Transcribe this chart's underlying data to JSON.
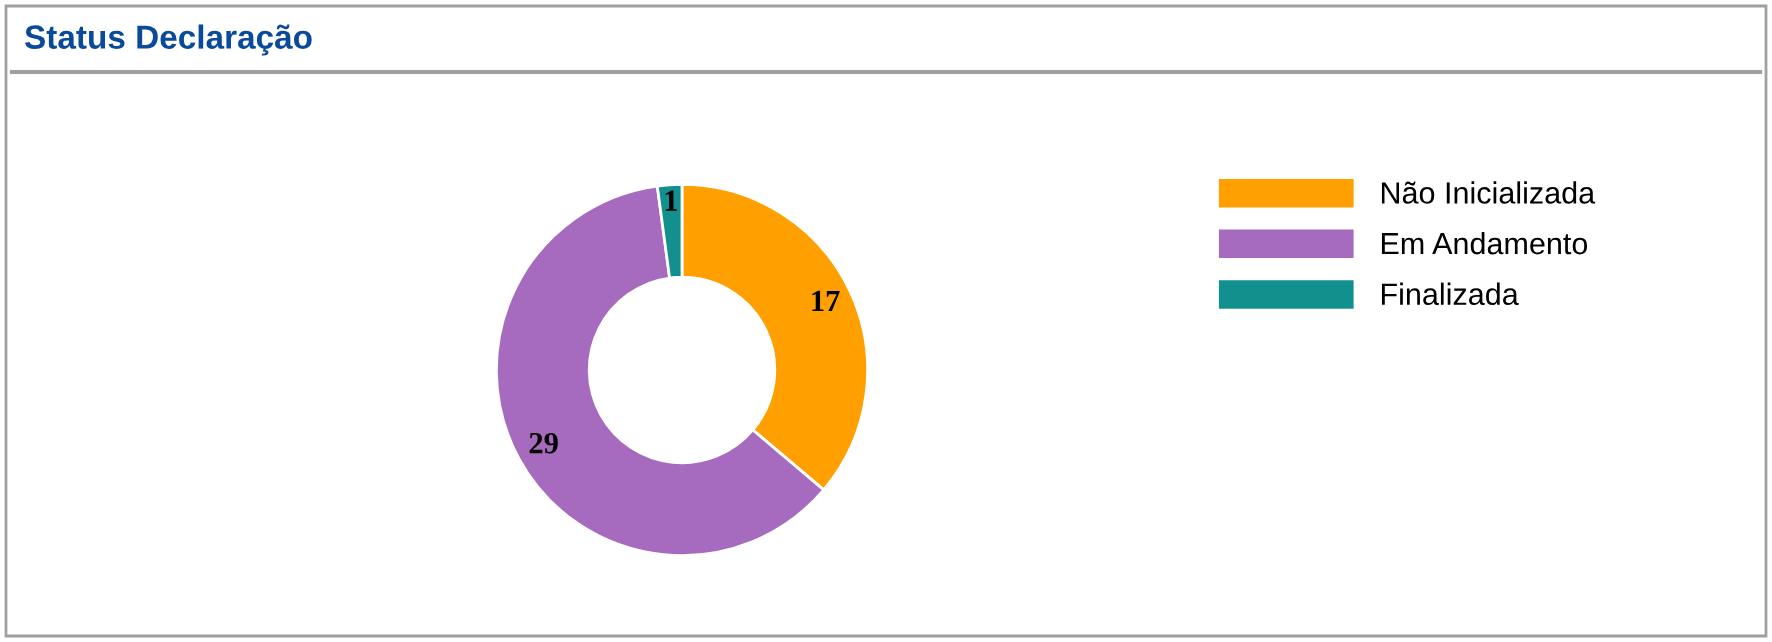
{
  "chart_data": {
    "type": "donut",
    "title": "Status Declaração",
    "categories": [
      "Não Inicializada",
      "Em Andamento",
      "Finalizada"
    ],
    "values": [
      17,
      29,
      1
    ],
    "colors": [
      "#ff9f00",
      "#a66bbe",
      "#12908e"
    ],
    "data_labels": true,
    "legend": "right"
  }
}
